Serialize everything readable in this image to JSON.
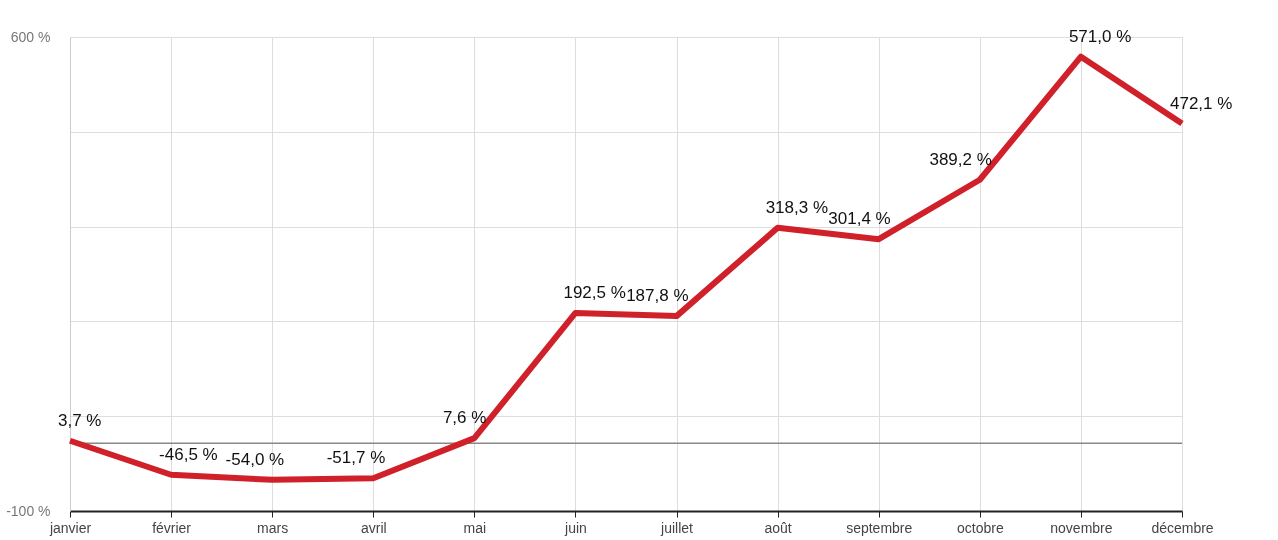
{
  "chart_data": {
    "type": "line",
    "categories": [
      "janvier",
      "février",
      "mars",
      "avril",
      "mai",
      "juin",
      "juillet",
      "août",
      "septembre",
      "octobre",
      "novembre",
      "décembre"
    ],
    "series": [
      {
        "color": "#d0202a",
        "values": [
          3.7,
          -46.5,
          -54.0,
          -51.7,
          7.6,
          192.5,
          187.8,
          318.3,
          301.4,
          389.2,
          571.0,
          472.1
        ],
        "value_labels": [
          "3,7 %",
          "-46,5 %",
          "-54,0 %",
          "-51,7 %",
          "7,6 %",
          "192,5 %",
          "187,8 %",
          "318,3 %",
          "301,4 %",
          "389,2 %",
          "571,0 %",
          "472,1 %"
        ]
      }
    ],
    "ylim": [
      -100,
      600
    ],
    "yticks": [
      {
        "value": -100,
        "label": "-100 %"
      },
      {
        "value": 40,
        "label": null
      },
      {
        "value": 180,
        "label": null
      },
      {
        "value": 320,
        "label": null
      },
      {
        "value": 460,
        "label": null
      },
      {
        "value": 600,
        "label": "600 %"
      }
    ],
    "ref_lines": [
      {
        "axis": "y",
        "value": 0,
        "label": null,
        "color": "#888888"
      }
    ],
    "grid": true,
    "marker": "none",
    "line_style": "solid"
  }
}
